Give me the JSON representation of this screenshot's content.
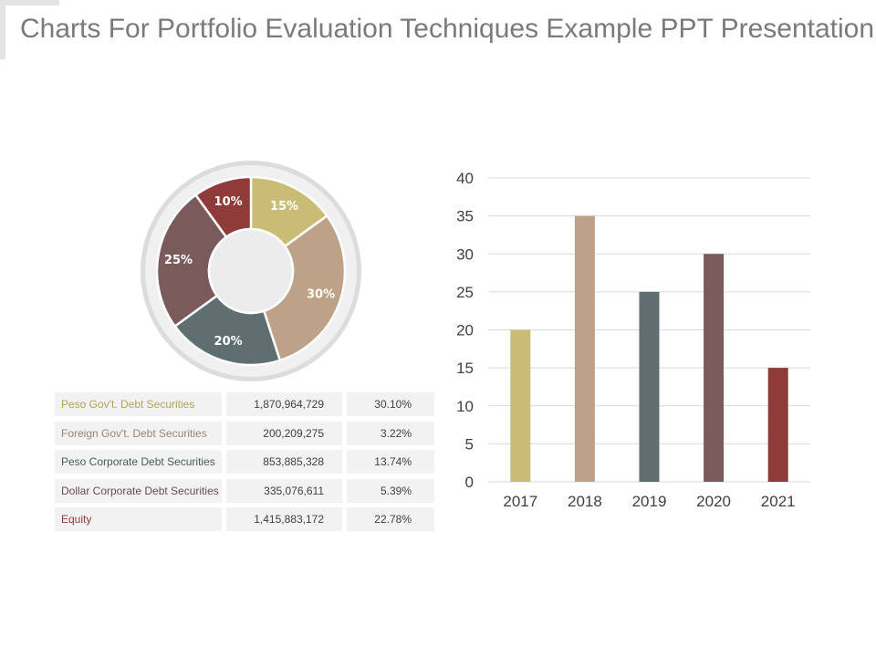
{
  "title": "Charts For Portfolio Evaluation Techniques Example PPT Presentation",
  "colors": {
    "gold": "#c9bd75",
    "tan": "#bda287",
    "slate": "#5e6e71",
    "mauve": "#7a5a5a",
    "red": "#8f3b3a",
    "title_text": "#7a7a7a",
    "grid": "#d9d9d9"
  },
  "table": {
    "rows": [
      {
        "name": "Peso Gov't. Debt Securities",
        "amount": "1,870,964,729",
        "percent": "30.10%",
        "color": "#b2a25a"
      },
      {
        "name": "Foreign Gov't. Debt Securities",
        "amount": "200,209,275",
        "percent": "3.22%",
        "color": "#9c8570"
      },
      {
        "name": "Peso Corporate Debt Securities",
        "amount": "853,885,328",
        "percent": "13.74%",
        "color": "#475a5e"
      },
      {
        "name": "Dollar Corporate Debt Securities",
        "amount": "335,076,611",
        "percent": "5.39%",
        "color": "#6e4c4c"
      },
      {
        "name": "Equity",
        "amount": "1,415,883,172",
        "percent": "22.78%",
        "color": "#8f3b3a"
      }
    ]
  },
  "chart_data": [
    {
      "type": "pie",
      "variant": "donut",
      "labels": [
        "15%",
        "30%",
        "20%",
        "25%",
        "10%"
      ],
      "values": [
        15,
        30,
        20,
        25,
        10
      ],
      "colors": [
        "#c9bd75",
        "#bda287",
        "#5e6e71",
        "#7a5a5a",
        "#8f3b3a"
      ],
      "title": ""
    },
    {
      "type": "bar",
      "categories": [
        "2017",
        "2018",
        "2019",
        "2020",
        "2021"
      ],
      "values": [
        20,
        35,
        25,
        30,
        15
      ],
      "colors": [
        "#c9bd75",
        "#bda287",
        "#5e6e71",
        "#7a5a5a",
        "#8f3b3a"
      ],
      "ylim": [
        0,
        40
      ],
      "yticks": [
        "0",
        "5",
        "10",
        "15",
        "20",
        "25",
        "30",
        "35",
        "40"
      ],
      "grid": true,
      "title": "",
      "xlabel": "",
      "ylabel": ""
    }
  ]
}
